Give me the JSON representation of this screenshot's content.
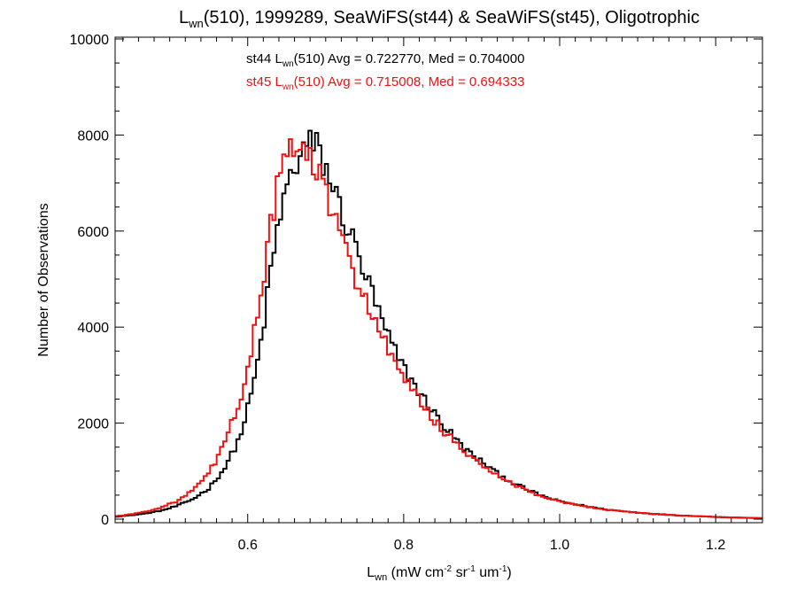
{
  "chart_data": {
    "type": "line",
    "title": {
      "main": "L",
      "sub": "wn",
      "rest": "(510), 1999289, SeaWiFS(st44) & SeaWiFS(st45), Oligotrophic"
    },
    "xlabel": {
      "main": "L",
      "sub": "wn",
      "p1": " (mW cm",
      "sup1": "-2",
      "p2": " sr",
      "sup2": "-1",
      "p3": " um",
      "sup3": "-1",
      "p4": ")"
    },
    "ylabel": "Number of Observations",
    "xlim": [
      0.43,
      1.26
    ],
    "ylim": [
      0,
      10000
    ],
    "xticks": [
      0.6,
      0.8,
      1.0,
      1.2
    ],
    "xtick_labels": [
      "0.6",
      "0.8",
      "1.0",
      "1.2"
    ],
    "yticks": [
      0,
      2000,
      4000,
      6000,
      8000,
      10000
    ],
    "ytick_labels": [
      "0",
      "2000",
      "4000",
      "6000",
      "8000",
      "10000"
    ],
    "grid": false,
    "series": [
      {
        "id": "st44",
        "color": "#000000",
        "stats": {
          "pre": "st44 L",
          "sub": "wn",
          "post": "(510) Avg = 0.722770, Med = 0.704000"
        },
        "x": [
          0.43,
          0.45,
          0.47,
          0.49,
          0.51,
          0.53,
          0.55,
          0.57,
          0.59,
          0.6,
          0.61,
          0.62,
          0.63,
          0.64,
          0.65,
          0.66,
          0.67,
          0.68,
          0.69,
          0.7,
          0.71,
          0.72,
          0.73,
          0.74,
          0.75,
          0.76,
          0.77,
          0.78,
          0.79,
          0.8,
          0.81,
          0.82,
          0.83,
          0.84,
          0.85,
          0.86,
          0.87,
          0.88,
          0.89,
          0.9,
          0.92,
          0.94,
          0.96,
          0.98,
          1.0,
          1.03,
          1.06,
          1.09,
          1.12,
          1.15,
          1.18,
          1.21,
          1.26
        ],
        "y": [
          50,
          80,
          120,
          180,
          280,
          420,
          640,
          1050,
          1700,
          2300,
          3000,
          4000,
          5200,
          6200,
          6900,
          7300,
          7700,
          7800,
          7700,
          7300,
          6900,
          6400,
          6000,
          5600,
          5100,
          4700,
          4200,
          3800,
          3450,
          3150,
          2900,
          2650,
          2400,
          2200,
          1950,
          1800,
          1600,
          1450,
          1300,
          1200,
          950,
          760,
          600,
          470,
          370,
          280,
          200,
          150,
          110,
          80,
          60,
          40,
          20
        ]
      },
      {
        "id": "st45",
        "color": "#ee1111",
        "stats": {
          "pre": "st45 L",
          "sub": "wn",
          "post": "(510) Avg = 0.715008, Med = 0.694333"
        },
        "x": [
          0.43,
          0.45,
          0.47,
          0.49,
          0.51,
          0.53,
          0.55,
          0.57,
          0.59,
          0.6,
          0.61,
          0.62,
          0.63,
          0.64,
          0.65,
          0.66,
          0.67,
          0.68,
          0.69,
          0.7,
          0.71,
          0.72,
          0.73,
          0.74,
          0.75,
          0.76,
          0.77,
          0.78,
          0.79,
          0.8,
          0.81,
          0.82,
          0.83,
          0.84,
          0.85,
          0.86,
          0.87,
          0.88,
          0.89,
          0.9,
          0.92,
          0.94,
          0.96,
          0.98,
          1.0,
          1.03,
          1.06,
          1.09,
          1.12,
          1.15,
          1.18,
          1.21,
          1.26
        ],
        "y": [
          60,
          100,
          160,
          250,
          380,
          600,
          950,
          1550,
          2500,
          3100,
          4000,
          5000,
          6200,
          7000,
          7500,
          7800,
          7600,
          7500,
          7200,
          6800,
          6300,
          5800,
          5400,
          5000,
          4600,
          4250,
          3900,
          3500,
          3200,
          2900,
          2700,
          2500,
          2250,
          2050,
          1850,
          1700,
          1500,
          1350,
          1250,
          1150,
          900,
          720,
          580,
          450,
          360,
          270,
          200,
          150,
          110,
          80,
          60,
          40,
          20
        ]
      }
    ]
  }
}
